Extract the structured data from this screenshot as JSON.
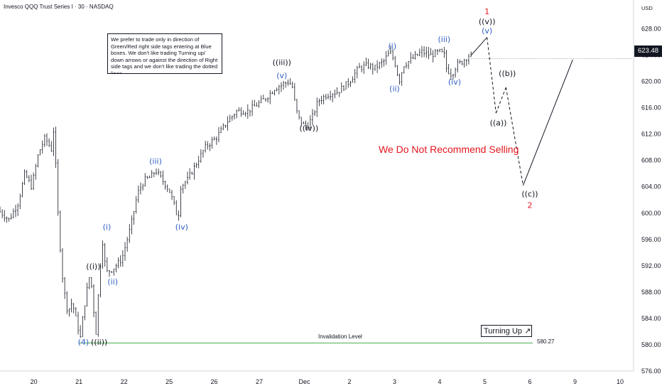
{
  "header": {
    "title": "Invesco QQQ Trust Series I · 30 · NASDAQ",
    "currency": "USD",
    "last_price": "623.48"
  },
  "note": {
    "text": "We prefer to trade only in direction of Green/Red right side tags entering at Blue boxes. We don't like trading Turning up/ down arrows or against the direction of Right side tags and we don't like trading the dotted lines."
  },
  "banner": {
    "not_recommend": "We Do Not Recommend Selling",
    "turning_up": "Turning Up",
    "turning_up_icon": "arrow-up-right-icon"
  },
  "invalidation": {
    "label": "Invalidation Level",
    "price_label": "580.27",
    "price": 580.27
  },
  "colors": {
    "up_candle": "#131722",
    "wave_black": "#131722",
    "wave_blue": "#2f5fc4",
    "wave_red": "#e0161d",
    "invalidation_line": "#4caf50",
    "projection": "#131722"
  },
  "chart_data": {
    "type": "candlestick",
    "title": "Invesco QQQ Trust Series I · 30 · NASDAQ",
    "ylim": [
      576.0,
      630.0
    ],
    "y_ticks": [
      576.0,
      580.0,
      584.0,
      588.0,
      592.0,
      596.0,
      600.0,
      604.0,
      608.0,
      612.0,
      616.0,
      620.0,
      624.0,
      628.0
    ],
    "y_tick_labels": [
      "576.00",
      "580.00",
      "584.00",
      "588.00",
      "592.00",
      "596.00",
      "600.00",
      "604.00",
      "608.00",
      "612.00",
      "616.00",
      "620.00",
      "624.00",
      "628.00"
    ],
    "x_ticks": [
      {
        "label": "20",
        "t": 0.5
      },
      {
        "label": "21",
        "t": 1.5
      },
      {
        "label": "22",
        "t": 2.5
      },
      {
        "label": "25",
        "t": 3.5
      },
      {
        "label": "26",
        "t": 4.5
      },
      {
        "label": "27",
        "t": 5.5
      },
      {
        "label": "Dec",
        "t": 6.5
      },
      {
        "label": "2",
        "t": 7.5
      },
      {
        "label": "3",
        "t": 8.5
      },
      {
        "label": "4",
        "t": 9.5
      },
      {
        "label": "5",
        "t": 10.5
      },
      {
        "label": "6",
        "t": 11.5
      },
      {
        "label": "9",
        "t": 12.5
      },
      {
        "label": "10",
        "t": 13.5
      }
    ],
    "xlim": [
      -0.25,
      13.8
    ],
    "price_path": [
      [
        -0.25,
        600.5
      ],
      [
        0.0,
        599.0
      ],
      [
        0.2,
        601.5
      ],
      [
        0.35,
        606.0
      ],
      [
        0.5,
        604.0
      ],
      [
        0.65,
        609.0
      ],
      [
        0.8,
        611.5
      ],
      [
        0.95,
        609.5
      ],
      [
        1.0,
        613.5
      ],
      [
        1.05,
        605.0
      ],
      [
        1.1,
        598.0
      ],
      [
        1.2,
        589.0
      ],
      [
        1.3,
        585.0
      ],
      [
        1.4,
        586.5
      ],
      [
        1.5,
        583.5
      ],
      [
        1.58,
        581.0
      ],
      [
        1.65,
        585.0
      ],
      [
        1.72,
        588.0
      ],
      [
        1.8,
        591.0
      ],
      [
        1.87,
        586.0
      ],
      [
        1.92,
        581.0
      ],
      [
        2.0,
        590.0
      ],
      [
        2.07,
        596.0
      ],
      [
        2.15,
        591.0
      ],
      [
        2.3,
        591.5
      ],
      [
        2.5,
        593.0
      ],
      [
        2.7,
        598.0
      ],
      [
        2.85,
        603.0
      ],
      [
        3.0,
        605.0
      ],
      [
        3.15,
        605.5
      ],
      [
        3.25,
        606.5
      ],
      [
        3.35,
        605.5
      ],
      [
        3.45,
        604.5
      ],
      [
        3.55,
        603.5
      ],
      [
        3.65,
        601.5
      ],
      [
        3.75,
        599.0
      ],
      [
        3.8,
        604.0
      ],
      [
        3.95,
        605.0
      ],
      [
        4.15,
        607.5
      ],
      [
        4.35,
        610.0
      ],
      [
        4.6,
        611.5
      ],
      [
        4.85,
        614.0
      ],
      [
        5.05,
        615.5
      ],
      [
        5.3,
        615.5
      ],
      [
        5.5,
        616.5
      ],
      [
        5.7,
        617.5
      ],
      [
        5.9,
        619.0
      ],
      [
        6.05,
        619.5
      ],
      [
        6.2,
        620.0
      ],
      [
        6.3,
        619.0
      ],
      [
        6.35,
        616.0
      ],
      [
        6.45,
        614.0
      ],
      [
        6.6,
        613.0
      ],
      [
        6.72,
        614.5
      ],
      [
        6.85,
        617.0
      ],
      [
        7.05,
        618.0
      ],
      [
        7.3,
        618.5
      ],
      [
        7.55,
        620.0
      ],
      [
        7.75,
        622.0
      ],
      [
        7.95,
        622.5
      ],
      [
        8.1,
        622.0
      ],
      [
        8.3,
        623.0
      ],
      [
        8.45,
        624.5
      ],
      [
        8.55,
        623.0
      ],
      [
        8.65,
        620.0
      ],
      [
        8.75,
        622.5
      ],
      [
        8.95,
        623.5
      ],
      [
        9.15,
        624.5
      ],
      [
        9.35,
        624.0
      ],
      [
        9.55,
        624.5
      ],
      [
        9.65,
        624.0
      ],
      [
        9.7,
        622.0
      ],
      [
        9.82,
        621.0
      ],
      [
        9.92,
        622.5
      ],
      [
        10.05,
        623.0
      ],
      [
        10.2,
        624.0
      ]
    ],
    "projection": {
      "solid_segments": [
        [
          [
            10.2,
            624.0
          ],
          [
            10.55,
            626.7
          ]
        ],
        [
          [
            11.35,
            604.2
          ],
          [
            12.45,
            623.3
          ]
        ]
      ],
      "dashed_segments": [
        [
          [
            10.55,
            626.7
          ],
          [
            10.75,
            615.2
          ]
        ],
        [
          [
            10.75,
            615.2
          ],
          [
            10.97,
            619.1
          ]
        ],
        [
          [
            10.97,
            619.1
          ],
          [
            11.35,
            604.2
          ]
        ]
      ]
    },
    "wave_labels": [
      {
        "text": "(4)",
        "t": 1.6,
        "y": 580.0,
        "color": "blue"
      },
      {
        "text": "((i))",
        "t": 1.82,
        "y": 591.5,
        "color": "black"
      },
      {
        "text": "((ii))",
        "t": 1.95,
        "y": 580.0,
        "color": "black"
      },
      {
        "text": "(i)",
        "t": 2.12,
        "y": 597.5,
        "color": "blue"
      },
      {
        "text": "(ii)",
        "t": 2.25,
        "y": 589.2,
        "color": "blue"
      },
      {
        "text": "(iii)",
        "t": 3.2,
        "y": 607.5,
        "color": "blue"
      },
      {
        "text": "(iv)",
        "t": 3.78,
        "y": 597.5,
        "color": "blue"
      },
      {
        "text": "((iii))",
        "t": 6.0,
        "y": 622.5,
        "color": "black"
      },
      {
        "text": "(v)",
        "t": 6.0,
        "y": 620.5,
        "color": "blue"
      },
      {
        "text": "((iv))",
        "t": 6.6,
        "y": 612.5,
        "color": "black"
      },
      {
        "text": "(i)",
        "t": 8.45,
        "y": 625.0,
        "color": "blue"
      },
      {
        "text": "(ii)",
        "t": 8.5,
        "y": 618.5,
        "color": "blue"
      },
      {
        "text": "(iii)",
        "t": 9.6,
        "y": 626.0,
        "color": "blue"
      },
      {
        "text": "(iv)",
        "t": 9.83,
        "y": 619.5,
        "color": "blue"
      },
      {
        "text": "1",
        "t": 10.55,
        "y": 630.2,
        "color": "red"
      },
      {
        "text": "((v))",
        "t": 10.55,
        "y": 628.7,
        "color": "black"
      },
      {
        "text": "(v)",
        "t": 10.55,
        "y": 627.3,
        "color": "blue"
      },
      {
        "text": "((a))",
        "t": 10.8,
        "y": 613.3,
        "color": "black"
      },
      {
        "text": "((b))",
        "t": 11.0,
        "y": 620.8,
        "color": "black"
      },
      {
        "text": "((c))",
        "t": 11.5,
        "y": 602.5,
        "color": "black"
      },
      {
        "text": "2",
        "t": 11.5,
        "y": 600.8,
        "color": "red"
      }
    ],
    "last_price": 623.48,
    "invalidation_level": 580.27,
    "grid": false
  }
}
